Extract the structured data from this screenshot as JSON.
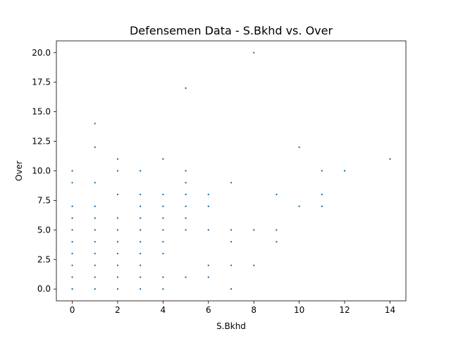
{
  "chart_data": {
    "type": "scatter",
    "title": "Defensemen Data - S.Bkhd vs. Over",
    "xlabel": "S.Bkhd",
    "ylabel": "Over",
    "xlim": [
      -0.7,
      14.7
    ],
    "ylim": [
      -1.0,
      21.0
    ],
    "xticks": [
      0,
      2,
      4,
      6,
      8,
      10,
      12,
      14
    ],
    "xtick_labels": [
      "0",
      "2",
      "4",
      "6",
      "8",
      "10",
      "12",
      "14"
    ],
    "yticks": [
      0,
      2.5,
      5,
      7.5,
      10,
      12.5,
      15,
      17.5,
      20
    ],
    "ytick_labels": [
      "0.0",
      "2.5",
      "5.0",
      "7.5",
      "10.0",
      "12.5",
      "15.0",
      "17.5",
      "20.0"
    ],
    "grid": false,
    "marker_color": "#1f77b4",
    "points": [
      [
        0,
        0
      ],
      [
        0,
        1
      ],
      [
        0,
        2
      ],
      [
        0,
        3
      ],
      [
        0,
        4
      ],
      [
        0,
        5
      ],
      [
        0,
        6
      ],
      [
        0,
        7
      ],
      [
        0,
        9
      ],
      [
        0,
        10
      ],
      [
        1,
        0
      ],
      [
        1,
        1
      ],
      [
        1,
        2
      ],
      [
        1,
        3
      ],
      [
        1,
        4
      ],
      [
        1,
        5
      ],
      [
        1,
        6
      ],
      [
        1,
        7
      ],
      [
        1,
        9
      ],
      [
        1,
        12
      ],
      [
        1,
        14
      ],
      [
        2,
        0
      ],
      [
        2,
        1
      ],
      [
        2,
        2
      ],
      [
        2,
        3
      ],
      [
        2,
        4
      ],
      [
        2,
        5
      ],
      [
        2,
        6
      ],
      [
        2,
        8
      ],
      [
        2,
        10
      ],
      [
        2,
        11
      ],
      [
        3,
        0
      ],
      [
        3,
        1
      ],
      [
        3,
        2
      ],
      [
        3,
        3
      ],
      [
        3,
        4
      ],
      [
        3,
        5
      ],
      [
        3,
        6
      ],
      [
        3,
        7
      ],
      [
        3,
        8
      ],
      [
        3,
        10
      ],
      [
        4,
        0
      ],
      [
        4,
        1
      ],
      [
        4,
        3
      ],
      [
        4,
        4
      ],
      [
        4,
        5
      ],
      [
        4,
        6
      ],
      [
        4,
        7
      ],
      [
        4,
        8
      ],
      [
        4,
        11
      ],
      [
        5,
        1
      ],
      [
        5,
        5
      ],
      [
        5,
        6
      ],
      [
        5,
        7
      ],
      [
        5,
        8
      ],
      [
        5,
        9
      ],
      [
        5,
        10
      ],
      [
        5,
        17
      ],
      [
        6,
        1
      ],
      [
        6,
        2
      ],
      [
        6,
        5
      ],
      [
        6,
        7
      ],
      [
        6,
        8
      ],
      [
        7,
        0
      ],
      [
        7,
        2
      ],
      [
        7,
        4
      ],
      [
        7,
        5
      ],
      [
        7,
        9
      ],
      [
        8,
        2
      ],
      [
        8,
        5
      ],
      [
        8,
        20
      ],
      [
        9,
        4
      ],
      [
        9,
        5
      ],
      [
        9,
        8
      ],
      [
        10,
        7
      ],
      [
        10,
        12
      ],
      [
        11,
        7
      ],
      [
        11,
        8
      ],
      [
        11,
        10
      ],
      [
        12,
        10
      ],
      [
        14,
        11
      ]
    ]
  }
}
